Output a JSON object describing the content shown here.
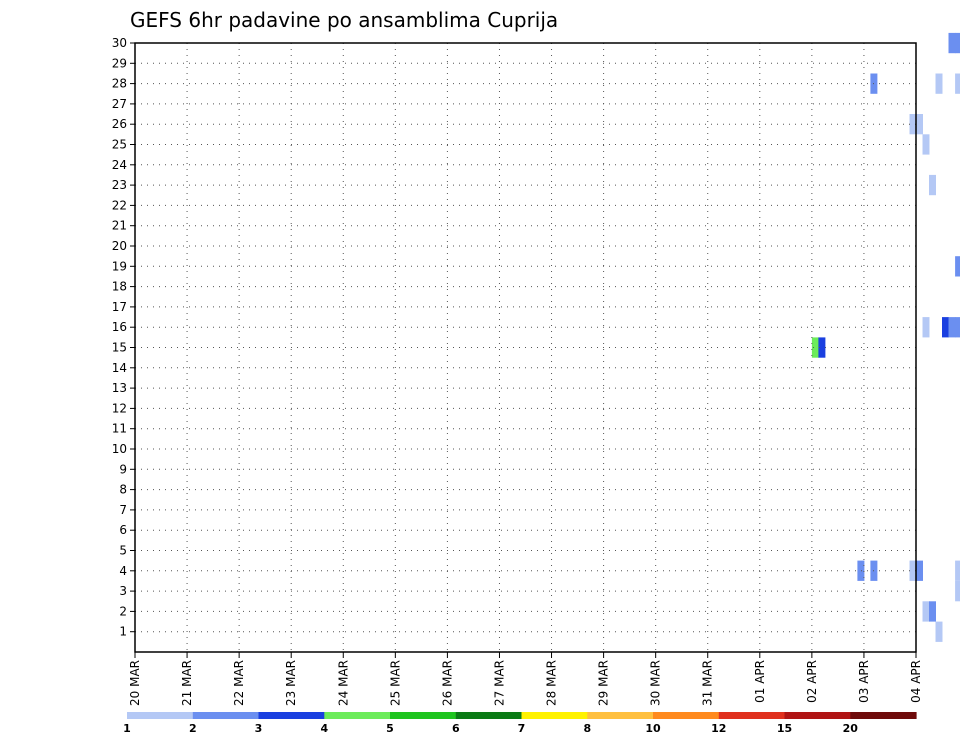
{
  "chart_data": {
    "type": "heatmap",
    "title": "GEFS 6hr padavine po ansamblima Cuprija",
    "y_ticks": [
      "1",
      "2",
      "3",
      "4",
      "5",
      "6",
      "7",
      "8",
      "9",
      "10",
      "11",
      "12",
      "13",
      "14",
      "15",
      "16",
      "17",
      "18",
      "19",
      "20",
      "21",
      "22",
      "23",
      "24",
      "25",
      "26",
      "27",
      "28",
      "29",
      "30"
    ],
    "x_ticks": [
      "20 MAR",
      "21 MAR",
      "22 MAR",
      "23 MAR",
      "24 MAR",
      "25 MAR",
      "26 MAR",
      "27 MAR",
      "28 MAR",
      "29 MAR",
      "30 MAR",
      "31 MAR",
      "01 APR",
      "02 APR",
      "03 APR",
      "04 APR"
    ],
    "xlim": [
      "20 MAR",
      "04 APR"
    ],
    "ylim": [
      0,
      30
    ],
    "grid": true,
    "legend_position": "bottom",
    "legend": [
      {
        "label": "1",
        "color": "#b4c8f5"
      },
      {
        "label": "2",
        "color": "#6b8ff0"
      },
      {
        "label": "3",
        "color": "#1a3fe0"
      },
      {
        "label": "4",
        "color": "#6cec5a"
      },
      {
        "label": "5",
        "color": "#1ec41e"
      },
      {
        "label": "6",
        "color": "#0a7a14"
      },
      {
        "label": "7",
        "color": "#fff200"
      },
      {
        "label": "8",
        "color": "#ffc040"
      },
      {
        "label": "10",
        "color": "#ff8a1e"
      },
      {
        "label": "12",
        "color": "#e0301e"
      },
      {
        "label": "15",
        "color": "#b01414"
      },
      {
        "label": "20",
        "color": "#6e0a0a"
      }
    ],
    "cells": [
      {
        "t": 62.5,
        "m": 30,
        "v": 2
      },
      {
        "t": 63.0,
        "m": 30,
        "v": 2
      },
      {
        "t": 63.5,
        "m": 30,
        "v": 1
      },
      {
        "t": 56.5,
        "m": 28,
        "v": 2
      },
      {
        "t": 61.5,
        "m": 28,
        "v": 1
      },
      {
        "t": 63.0,
        "m": 28,
        "v": 1
      },
      {
        "t": 64.5,
        "m": 27,
        "v": 2
      },
      {
        "t": 65.0,
        "m": 27,
        "v": 4
      },
      {
        "t": 65.5,
        "m": 27,
        "v": 5
      },
      {
        "t": 66.0,
        "m": 27,
        "v": 1
      },
      {
        "t": 66.5,
        "m": 27,
        "v": 2
      },
      {
        "t": 59.5,
        "m": 26,
        "v": 1
      },
      {
        "t": 60.0,
        "m": 26,
        "v": 1
      },
      {
        "t": 63.5,
        "m": 26,
        "v": 1
      },
      {
        "t": 64.0,
        "m": 26,
        "v": 1
      },
      {
        "t": 65.0,
        "m": 26,
        "v": 1
      },
      {
        "t": 65.5,
        "m": 26,
        "v": 1
      },
      {
        "t": 71.5,
        "m": 26,
        "v": 4
      },
      {
        "t": 72.0,
        "m": 26,
        "v": 4
      },
      {
        "t": 60.5,
        "m": 25,
        "v": 1
      },
      {
        "t": 64.0,
        "m": 25,
        "v": 1
      },
      {
        "t": 64.5,
        "m": 25,
        "v": 4
      },
      {
        "t": 66.0,
        "m": 25,
        "v": 2
      },
      {
        "t": 66.5,
        "m": 25,
        "v": 2
      },
      {
        "t": 65.0,
        "m": 24,
        "v": 1
      },
      {
        "t": 61.0,
        "m": 23,
        "v": 1
      },
      {
        "t": 66.0,
        "m": 23,
        "v": 3
      },
      {
        "t": 67.5,
        "m": 23,
        "v": 2
      },
      {
        "t": 66.0,
        "m": 22,
        "v": 1
      },
      {
        "t": 67.0,
        "m": 20,
        "v": 1
      },
      {
        "t": 71.5,
        "m": 20,
        "v": 4
      },
      {
        "t": 72.0,
        "m": 20,
        "v": 2
      },
      {
        "t": 63.0,
        "m": 19,
        "v": 2
      },
      {
        "t": 63.5,
        "m": 19,
        "v": 3
      },
      {
        "t": 74.0,
        "m": 19,
        "v": 1
      },
      {
        "t": 74.5,
        "m": 19,
        "v": 2
      },
      {
        "t": 64.0,
        "m": 18,
        "v": 1
      },
      {
        "t": 65.0,
        "m": 18,
        "v": 4
      },
      {
        "t": 65.0,
        "m": 17,
        "v": 1
      },
      {
        "t": 65.5,
        "m": 17,
        "v": 3
      },
      {
        "t": 60.5,
        "m": 16,
        "v": 1
      },
      {
        "t": 62.0,
        "m": 16,
        "v": 3
      },
      {
        "t": 62.5,
        "m": 16,
        "v": 2
      },
      {
        "t": 63.0,
        "m": 16,
        "v": 2
      },
      {
        "t": 63.5,
        "m": 16,
        "v": 4
      },
      {
        "t": 64.0,
        "m": 16,
        "v": 6
      },
      {
        "t": 64.5,
        "m": 16,
        "v": 3
      },
      {
        "t": 52.0,
        "m": 15,
        "v": 4
      },
      {
        "t": 52.5,
        "m": 15,
        "v": 3
      },
      {
        "t": 64.0,
        "m": 15,
        "v": 2
      },
      {
        "t": 65.5,
        "m": 15,
        "v": 4
      },
      {
        "t": 66.0,
        "m": 15,
        "v": 2
      },
      {
        "t": 66.5,
        "m": 15,
        "v": 3
      },
      {
        "t": 65.5,
        "m": 14,
        "v": 4
      },
      {
        "t": 66.0,
        "m": 14,
        "v": 3
      },
      {
        "t": 64.0,
        "m": 13,
        "v": 1
      },
      {
        "t": 65.0,
        "m": 11,
        "v": 1
      },
      {
        "t": 65.5,
        "m": 11,
        "v": 1
      },
      {
        "t": 66.5,
        "m": 11,
        "v": 1
      },
      {
        "t": 69.5,
        "m": 10,
        "v": 1
      },
      {
        "t": 70.0,
        "m": 10,
        "v": 2
      },
      {
        "t": 64.0,
        "m": 8,
        "v": 2
      },
      {
        "t": 64.5,
        "m": 8,
        "v": 1
      },
      {
        "t": 65.5,
        "m": 8,
        "v": 1
      },
      {
        "t": 66.0,
        "m": 8,
        "v": 1
      },
      {
        "t": 66.5,
        "m": 8,
        "v": 1
      },
      {
        "t": 68.0,
        "m": 8,
        "v": 1
      },
      {
        "t": 69.0,
        "m": 8,
        "v": 1
      },
      {
        "t": 71.0,
        "m": 8,
        "v": 1
      },
      {
        "t": 71.5,
        "m": 8,
        "v": 8
      },
      {
        "t": 72.0,
        "m": 8,
        "v": 4
      },
      {
        "t": 72.5,
        "m": 8,
        "v": 6
      },
      {
        "t": 65.0,
        "m": 7,
        "v": 1
      },
      {
        "t": 66.5,
        "m": 7,
        "v": 1
      },
      {
        "t": 67.0,
        "m": 7,
        "v": 3
      },
      {
        "t": 67.5,
        "m": 7,
        "v": 3
      },
      {
        "t": 68.0,
        "m": 7,
        "v": 3
      },
      {
        "t": 68.5,
        "m": 7,
        "v": 5
      },
      {
        "t": 69.0,
        "m": 7,
        "v": 1
      },
      {
        "t": 64.0,
        "m": 6,
        "v": 2
      },
      {
        "t": 65.5,
        "m": 6,
        "v": 5
      },
      {
        "t": 66.0,
        "m": 6,
        "v": 3
      },
      {
        "t": 72.0,
        "m": 6,
        "v": 7
      },
      {
        "t": 72.5,
        "m": 6,
        "v": 2
      },
      {
        "t": 69.5,
        "m": 5,
        "v": 3
      },
      {
        "t": 71.0,
        "m": 5,
        "v": 1
      },
      {
        "t": 71.5,
        "m": 5,
        "v": 3
      },
      {
        "t": 72.0,
        "m": 5,
        "v": 5
      },
      {
        "t": 55.5,
        "m": 4,
        "v": 2
      },
      {
        "t": 56.5,
        "m": 4,
        "v": 2
      },
      {
        "t": 59.5,
        "m": 4,
        "v": 1
      },
      {
        "t": 60.0,
        "m": 4,
        "v": 2
      },
      {
        "t": 63.0,
        "m": 4,
        "v": 1
      },
      {
        "t": 64.0,
        "m": 4,
        "v": 2
      },
      {
        "t": 64.5,
        "m": 4,
        "v": 1
      },
      {
        "t": 69.5,
        "m": 4,
        "v": 1
      },
      {
        "t": 70.5,
        "m": 4,
        "v": 1
      },
      {
        "t": 71.0,
        "m": 4,
        "v": 3
      },
      {
        "t": 63.0,
        "m": 3,
        "v": 1
      },
      {
        "t": 65.0,
        "m": 3,
        "v": 1
      },
      {
        "t": 67.0,
        "m": 3,
        "v": 1
      },
      {
        "t": 60.5,
        "m": 2,
        "v": 1
      },
      {
        "t": 61.0,
        "m": 2,
        "v": 2
      },
      {
        "t": 66.0,
        "m": 2,
        "v": 3
      },
      {
        "t": 66.5,
        "m": 2,
        "v": 12
      },
      {
        "t": 67.0,
        "m": 2,
        "v": 12
      },
      {
        "t": 67.5,
        "m": 2,
        "v": 6
      },
      {
        "t": 69.5,
        "m": 2,
        "v": 1
      },
      {
        "t": 70.0,
        "m": 2,
        "v": 3
      },
      {
        "t": 70.5,
        "m": 2,
        "v": 1
      },
      {
        "t": 71.0,
        "m": 2,
        "v": 1
      },
      {
        "t": 71.5,
        "m": 2,
        "v": 3
      },
      {
        "t": 61.5,
        "m": 1,
        "v": 1
      },
      {
        "t": 66.0,
        "m": 1,
        "v": 3
      },
      {
        "t": 66.5,
        "m": 1,
        "v": 1
      },
      {
        "t": 67.0,
        "m": 1,
        "v": 1
      },
      {
        "t": 69.5,
        "m": 1,
        "v": 1
      },
      {
        "t": 63.5,
        "m": 0,
        "v": 5
      },
      {
        "t": 64.0,
        "m": 0,
        "v": 2
      },
      {
        "t": 64.5,
        "m": 0,
        "v": 3
      },
      {
        "t": 70.5,
        "m": 0,
        "v": 1
      },
      {
        "t": 71.0,
        "m": 0,
        "v": 1
      }
    ]
  }
}
